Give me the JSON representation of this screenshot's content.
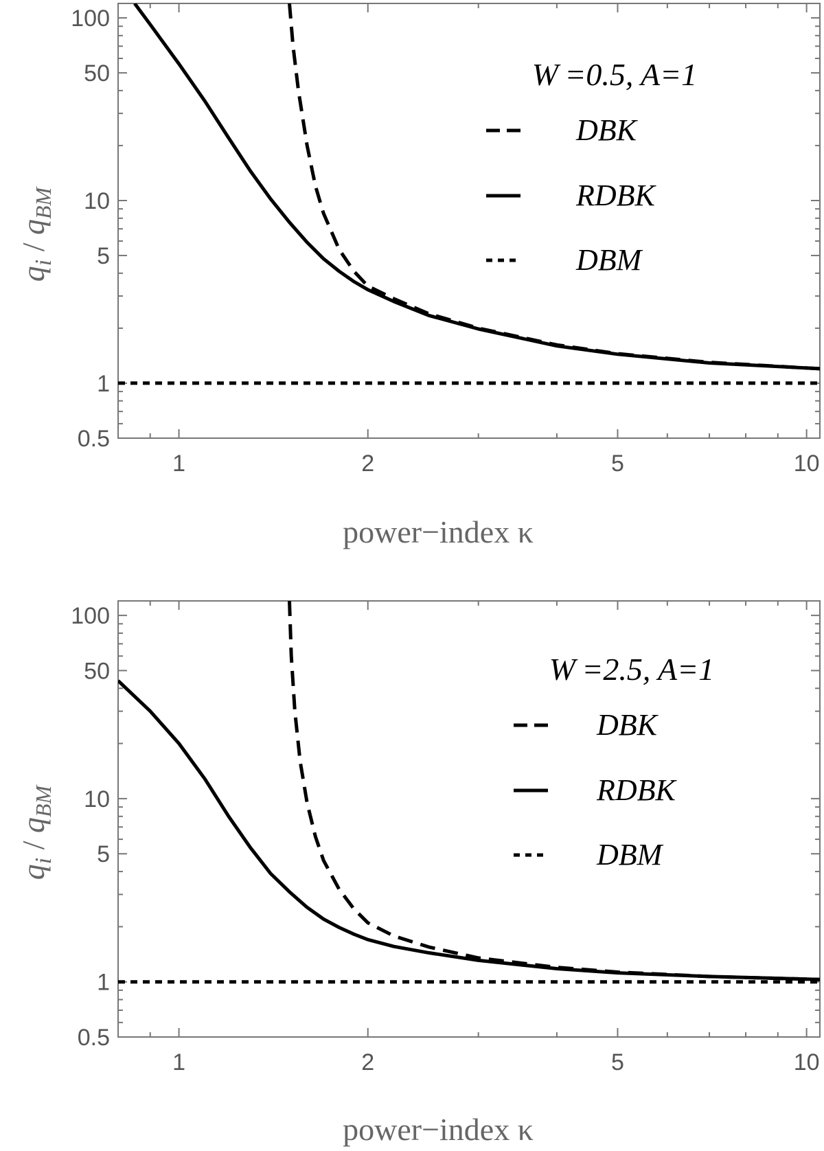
{
  "chart_data": [
    {
      "type": "line",
      "xscale": "log",
      "yscale": "log",
      "xlim": [
        0.8,
        10.5
      ],
      "ylim": [
        0.5,
        120
      ],
      "xlabel": "power−index κ",
      "ylabel_parts": {
        "base": "q",
        "num_sub": "i",
        "sep": " / ",
        "den_sub": "BM"
      },
      "xticks": [
        1,
        2,
        5,
        10
      ],
      "yticks": [
        0.5,
        1,
        5,
        10,
        50,
        100
      ],
      "grid": false,
      "legend": {
        "title": "W =0.5, A=1",
        "position": "top-right",
        "entries": [
          {
            "label": "DBK",
            "style": "dashed"
          },
          {
            "label": "RDBK",
            "style": "solid"
          },
          {
            "label": "DBM",
            "style": "dotted"
          }
        ]
      },
      "series": [
        {
          "name": "DBK",
          "style": "dashed",
          "x": [
            1.5,
            1.52,
            1.55,
            1.6,
            1.65,
            1.7,
            1.8,
            1.9,
            2.0,
            2.2,
            2.5,
            3,
            4,
            5,
            7,
            10.5
          ],
          "y": [
            120,
            70,
            40,
            20,
            12,
            8.5,
            5.4,
            4.1,
            3.4,
            2.9,
            2.4,
            2.0,
            1.62,
            1.45,
            1.3,
            1.2
          ]
        },
        {
          "name": "RDBK",
          "style": "solid",
          "x": [
            0.85,
            0.9,
            1.0,
            1.1,
            1.2,
            1.3,
            1.4,
            1.5,
            1.6,
            1.7,
            1.8,
            1.9,
            2.0,
            2.2,
            2.5,
            3,
            4,
            5,
            7,
            10.5
          ],
          "y": [
            120,
            92,
            56,
            35,
            22,
            14.5,
            10.2,
            7.6,
            5.9,
            4.8,
            4.1,
            3.6,
            3.25,
            2.8,
            2.35,
            1.98,
            1.6,
            1.44,
            1.29,
            1.2
          ]
        },
        {
          "name": "DBM",
          "style": "dotted",
          "x": [
            0.8,
            10.5
          ],
          "y": [
            1,
            1
          ]
        }
      ]
    },
    {
      "type": "line",
      "xscale": "log",
      "yscale": "log",
      "xlim": [
        0.8,
        10.5
      ],
      "ylim": [
        0.5,
        120
      ],
      "xlabel": "power−index κ",
      "ylabel_parts": {
        "base": "q",
        "num_sub": "i",
        "sep": " / ",
        "den_sub": "BM"
      },
      "xticks": [
        1,
        2,
        5,
        10
      ],
      "yticks": [
        0.5,
        1,
        5,
        10,
        50,
        100
      ],
      "grid": false,
      "legend": {
        "title": "W =2.5, A=1",
        "position": "top-right",
        "entries": [
          {
            "label": "DBK",
            "style": "dashed"
          },
          {
            "label": "RDBK",
            "style": "solid"
          },
          {
            "label": "DBM",
            "style": "dotted"
          }
        ]
      },
      "series": [
        {
          "name": "DBK",
          "style": "dashed",
          "x": [
            1.5,
            1.51,
            1.53,
            1.56,
            1.6,
            1.65,
            1.7,
            1.8,
            1.9,
            2.0,
            2.2,
            2.5,
            3,
            4,
            5,
            7,
            10.5
          ],
          "y": [
            120,
            60,
            30,
            16,
            9.5,
            6.2,
            4.6,
            3.2,
            2.5,
            2.1,
            1.78,
            1.55,
            1.35,
            1.2,
            1.13,
            1.07,
            1.03
          ]
        },
        {
          "name": "RDBK",
          "style": "solid",
          "x": [
            0.8,
            0.9,
            1.0,
            1.1,
            1.2,
            1.3,
            1.4,
            1.5,
            1.6,
            1.7,
            1.8,
            1.9,
            2.0,
            2.2,
            2.5,
            3,
            4,
            5,
            7,
            10.5
          ],
          "y": [
            44,
            30,
            20,
            12.8,
            8.0,
            5.4,
            3.9,
            3.1,
            2.55,
            2.2,
            1.98,
            1.82,
            1.7,
            1.56,
            1.44,
            1.31,
            1.18,
            1.12,
            1.07,
            1.03
          ]
        },
        {
          "name": "DBM",
          "style": "dotted",
          "x": [
            0.8,
            10.5
          ],
          "y": [
            1,
            1
          ]
        }
      ]
    }
  ]
}
